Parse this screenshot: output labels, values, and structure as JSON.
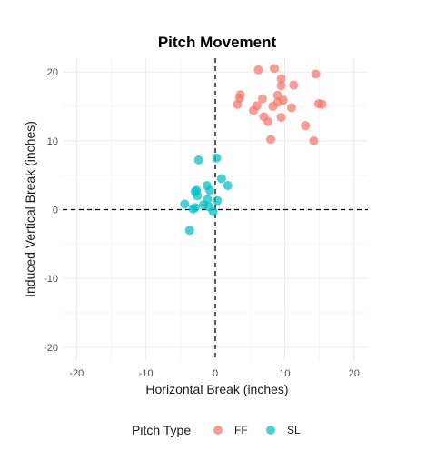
{
  "chart_data": {
    "type": "scatter",
    "title": "Pitch Movement",
    "xlabel": "Horizontal Break (inches)",
    "ylabel": "Induced Vertical Break (inches)",
    "xlim": [
      -22,
      22
    ],
    "ylim": [
      -22,
      22
    ],
    "x_ticks": [
      -20,
      -10,
      0,
      10,
      20
    ],
    "y_ticks": [
      -20,
      -10,
      0,
      10,
      20
    ],
    "x_tick_labels": [
      "-20",
      "-10",
      "0",
      "10",
      "20"
    ],
    "y_tick_labels": [
      "-20",
      "-10",
      "0",
      "10",
      "20"
    ],
    "reference_lines": {
      "x": 0,
      "y": 0,
      "style": "dashed"
    },
    "grid": true,
    "legend": {
      "title": "Pitch Type",
      "position": "bottom"
    },
    "series": [
      {
        "name": "FF",
        "color": "#F8766D",
        "points": [
          [
            6.2,
            20.3
          ],
          [
            8.5,
            20.5
          ],
          [
            14.5,
            19.7
          ],
          [
            9.5,
            19.0
          ],
          [
            9.5,
            18.0
          ],
          [
            11.3,
            18.1
          ],
          [
            3.6,
            16.7
          ],
          [
            9.0,
            16.6
          ],
          [
            3.5,
            16.2
          ],
          [
            6.8,
            16.1
          ],
          [
            9.0,
            15.6
          ],
          [
            9.8,
            15.9
          ],
          [
            14.9,
            15.4
          ],
          [
            15.4,
            15.3
          ],
          [
            3.2,
            15.3
          ],
          [
            6.0,
            15.1
          ],
          [
            8.3,
            15.0
          ],
          [
            11.0,
            14.8
          ],
          [
            5.5,
            14.4
          ],
          [
            7.0,
            13.5
          ],
          [
            9.5,
            13.4
          ],
          [
            7.6,
            12.8
          ],
          [
            13.0,
            12.2
          ],
          [
            8.0,
            10.2
          ],
          [
            14.2,
            10.0
          ]
        ]
      },
      {
        "name": "SL",
        "color": "#00BFC4",
        "points": [
          [
            0.2,
            7.5
          ],
          [
            -2.4,
            7.2
          ],
          [
            0.9,
            4.5
          ],
          [
            1.8,
            3.5
          ],
          [
            -1.2,
            3.5
          ],
          [
            -2.7,
            2.8
          ],
          [
            -2.9,
            2.6
          ],
          [
            -0.8,
            2.8
          ],
          [
            -2.6,
            2.0
          ],
          [
            -1.1,
            1.5
          ],
          [
            0.3,
            1.3
          ],
          [
            -4.4,
            0.8
          ],
          [
            -1.7,
            0.7
          ],
          [
            -0.9,
            0.4
          ],
          [
            -2.9,
            0.3
          ],
          [
            -3.2,
            0.1
          ],
          [
            -0.3,
            -0.3
          ],
          [
            -3.7,
            -3.0
          ]
        ]
      }
    ]
  }
}
